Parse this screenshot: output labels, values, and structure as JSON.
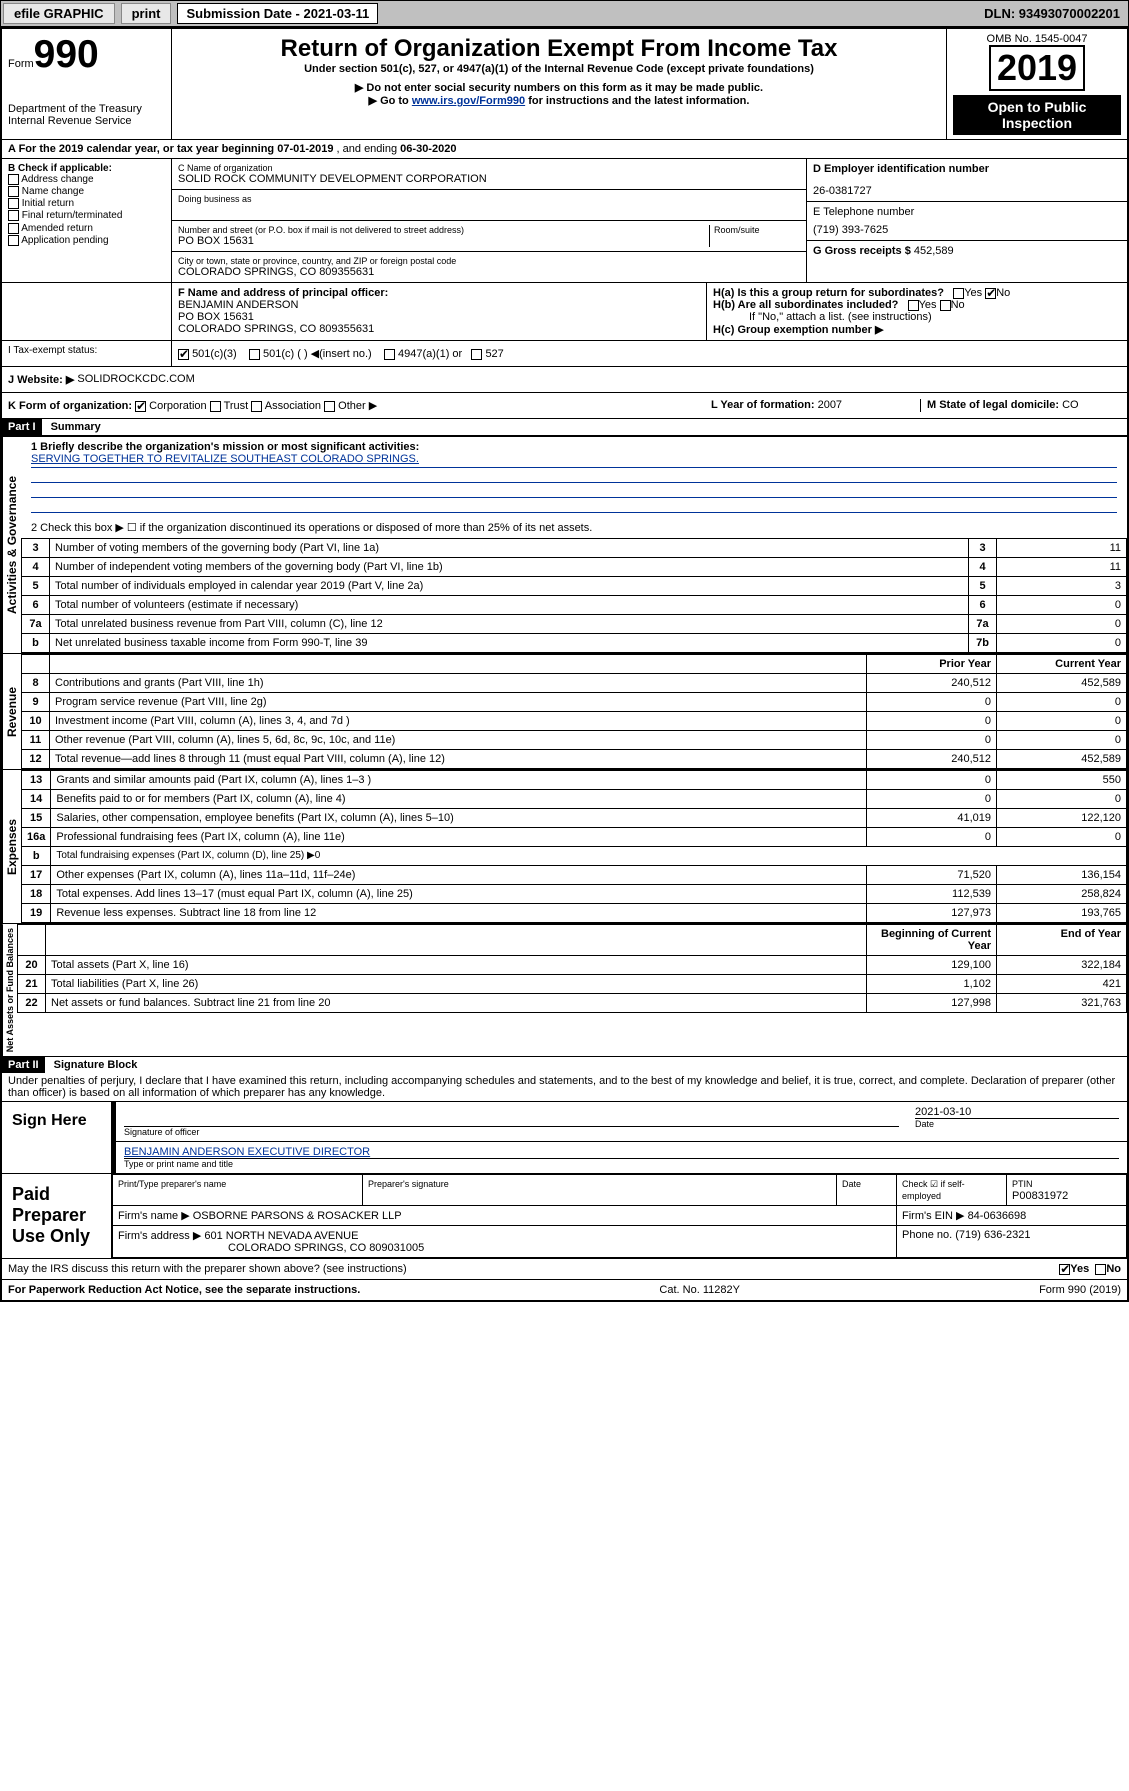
{
  "topbar": {
    "efile": "efile GRAPHIC",
    "print": "print",
    "submission": "Submission Date - 2021-03-11",
    "dln": "DLN: 93493070002201"
  },
  "header": {
    "form_label": "Form",
    "form_num": "990",
    "dept": "Department of the Treasury",
    "irs": "Internal Revenue Service",
    "title": "Return of Organization Exempt From Income Tax",
    "subtitle": "Under section 501(c), 527, or 4947(a)(1) of the Internal Revenue Code (except private foundations)",
    "note1": "▶ Do not enter social security numbers on this form as it may be made public.",
    "note2_pre": "▶ Go to",
    "note2_link": "www.irs.gov/Form990",
    "note2_post": "for instructions and the latest information.",
    "omb": "OMB No. 1545-0047",
    "year": "2019",
    "open": "Open to Public Inspection"
  },
  "period": {
    "label_a": "A  For the 2019 calendar year, or tax year beginning",
    "begin": "07-01-2019",
    "mid": ", and ending",
    "end": "06-30-2020"
  },
  "boxB": {
    "label": "B Check if applicable:",
    "opts": [
      "Address change",
      "Name change",
      "Initial return",
      "Final return/terminated",
      "Amended return",
      "Application pending"
    ]
  },
  "boxC": {
    "name_label": "C Name of organization",
    "name": "SOLID ROCK COMMUNITY DEVELOPMENT CORPORATION",
    "dba_label": "Doing business as",
    "addr_label": "Number and street (or P.O. box if mail is not delivered to street address)",
    "room_label": "Room/suite",
    "addr": "PO BOX 15631",
    "city_label": "City or town, state or province, country, and ZIP or foreign postal code",
    "city": "COLORADO SPRINGS, CO  809355631"
  },
  "boxD": {
    "label": "D Employer identification number",
    "value": "26-0381727"
  },
  "boxE": {
    "label": "E Telephone number",
    "value": "(719) 393-7625"
  },
  "boxG": {
    "label": "G Gross receipts $",
    "value": "452,589"
  },
  "boxF": {
    "label": "F Name and address of principal officer:",
    "line1": "BENJAMIN ANDERSON",
    "line2": "PO BOX 15631",
    "line3": "COLORADO SPRINGS, CO  809355631"
  },
  "boxH": {
    "a": "H(a)  Is this a group return for subordinates?",
    "b": "H(b)  Are all subordinates included?",
    "b_note": "If \"No,\" attach a list. (see instructions)",
    "c": "H(c)  Group exemption number ▶"
  },
  "boxI": {
    "label": "I   Tax-exempt status:",
    "opt1": "501(c)(3)",
    "opt2": "501(c) (   ) ◀(insert no.)",
    "opt3": "4947(a)(1) or",
    "opt4": "527"
  },
  "boxJ": {
    "label": "J   Website: ▶",
    "value": "SOLIDROCKCDC.COM"
  },
  "boxK": {
    "label": "K Form of organization:",
    "opts": [
      "Corporation",
      "Trust",
      "Association",
      "Other ▶"
    ]
  },
  "boxL": {
    "label": "L Year of formation:",
    "value": "2007"
  },
  "boxM": {
    "label": "M State of legal domicile:",
    "value": "CO"
  },
  "part1": {
    "hdr": "Part I",
    "title": "Summary"
  },
  "summary": {
    "line1_label": "1    Briefly describe the organization's mission or most significant activities:",
    "line1_mission": "SERVING TOGETHER TO REVITALIZE SOUTHEAST COLORADO SPRINGS.",
    "line2": "2    Check this box ▶ ☐ if the organization discontinued its operations or disposed of more than 25% of its net assets.",
    "rows": [
      {
        "n": "3",
        "t": "Number of voting members of the governing body (Part VI, line 1a)",
        "box": "3",
        "v": "11"
      },
      {
        "n": "4",
        "t": "Number of independent voting members of the governing body (Part VI, line 1b)",
        "box": "4",
        "v": "11"
      },
      {
        "n": "5",
        "t": "Total number of individuals employed in calendar year 2019 (Part V, line 2a)",
        "box": "5",
        "v": "3"
      },
      {
        "n": "6",
        "t": "Total number of volunteers (estimate if necessary)",
        "box": "6",
        "v": "0"
      },
      {
        "n": "7a",
        "t": "Total unrelated business revenue from Part VIII, column (C), line 12",
        "box": "7a",
        "v": "0"
      },
      {
        "n": " b",
        "t": "Net unrelated business taxable income from Form 990-T, line 39",
        "box": "7b",
        "v": "0"
      }
    ]
  },
  "rev_hdr": {
    "prior": "Prior Year",
    "current": "Current Year"
  },
  "revenue": [
    {
      "n": "8",
      "t": "Contributions and grants (Part VIII, line 1h)",
      "p": "240,512",
      "c": "452,589"
    },
    {
      "n": "9",
      "t": "Program service revenue (Part VIII, line 2g)",
      "p": "0",
      "c": "0"
    },
    {
      "n": "10",
      "t": "Investment income (Part VIII, column (A), lines 3, 4, and 7d )",
      "p": "0",
      "c": "0"
    },
    {
      "n": "11",
      "t": "Other revenue (Part VIII, column (A), lines 5, 6d, 8c, 9c, 10c, and 11e)",
      "p": "0",
      "c": "0"
    },
    {
      "n": "12",
      "t": "Total revenue—add lines 8 through 11 (must equal Part VIII, column (A), line 12)",
      "p": "240,512",
      "c": "452,589"
    }
  ],
  "expenses": [
    {
      "n": "13",
      "t": "Grants and similar amounts paid (Part IX, column (A), lines 1–3 )",
      "p": "0",
      "c": "550"
    },
    {
      "n": "14",
      "t": "Benefits paid to or for members (Part IX, column (A), line 4)",
      "p": "0",
      "c": "0"
    },
    {
      "n": "15",
      "t": "Salaries, other compensation, employee benefits (Part IX, column (A), lines 5–10)",
      "p": "41,019",
      "c": "122,120"
    },
    {
      "n": "16a",
      "t": "Professional fundraising fees (Part IX, column (A), line 11e)",
      "p": "0",
      "c": "0"
    },
    {
      "n": "b",
      "t": "Total fundraising expenses (Part IX, column (D), line 25) ▶0",
      "p": "",
      "c": ""
    },
    {
      "n": "17",
      "t": "Other expenses (Part IX, column (A), lines 11a–11d, 11f–24e)",
      "p": "71,520",
      "c": "136,154"
    },
    {
      "n": "18",
      "t": "Total expenses. Add lines 13–17 (must equal Part IX, column (A), line 25)",
      "p": "112,539",
      "c": "258,824"
    },
    {
      "n": "19",
      "t": "Revenue less expenses. Subtract line 18 from line 12",
      "p": "127,973",
      "c": "193,765"
    }
  ],
  "net_hdr": {
    "begin": "Beginning of Current Year",
    "end": "End of Year"
  },
  "net": [
    {
      "n": "20",
      "t": "Total assets (Part X, line 16)",
      "p": "129,100",
      "c": "322,184"
    },
    {
      "n": "21",
      "t": "Total liabilities (Part X, line 26)",
      "p": "1,102",
      "c": "421"
    },
    {
      "n": "22",
      "t": "Net assets or fund balances. Subtract line 21 from line 20",
      "p": "127,998",
      "c": "321,763"
    }
  ],
  "part2": {
    "hdr": "Part II",
    "title": "Signature Block"
  },
  "perjury": "Under penalties of perjury, I declare that I have examined this return, including accompanying schedules and statements, and to the best of my knowledge and belief, it is true, correct, and complete. Declaration of preparer (other than officer) is based on all information of which preparer has any knowledge.",
  "sign": {
    "here": "Sign Here",
    "sig_officer": "Signature of officer",
    "date": "2021-03-10",
    "date_lbl": "Date",
    "name": "BENJAMIN ANDERSON  EXECUTIVE DIRECTOR",
    "name_lbl": "Type or print name and title"
  },
  "paid": {
    "title": "Paid Preparer Use Only",
    "h1": "Print/Type preparer's name",
    "h2": "Preparer's signature",
    "h3": "Date",
    "h4": "Check ☑ if self-employed",
    "h5": "PTIN",
    "ptin": "P00831972",
    "firm_lbl": "Firm's name    ▶",
    "firm": "OSBORNE PARSONS & ROSACKER LLP",
    "ein_lbl": "Firm's EIN ▶",
    "ein": "84-0636698",
    "addr_lbl": "Firm's address ▶",
    "addr1": "601 NORTH NEVADA AVENUE",
    "addr2": "COLORADO SPRINGS, CO  809031005",
    "phone_lbl": "Phone no.",
    "phone": "(719) 636-2321"
  },
  "discuss": "May the IRS discuss this return with the preparer shown above? (see instructions)",
  "footer": {
    "paperwork": "For Paperwork Reduction Act Notice, see the separate instructions.",
    "cat": "Cat. No. 11282Y",
    "form": "Form 990 (2019)"
  },
  "vside": {
    "gov": "Activities & Governance",
    "rev": "Revenue",
    "exp": "Expenses",
    "net": "Net Assets or Fund Balances"
  },
  "yes": "Yes",
  "no": "No"
}
